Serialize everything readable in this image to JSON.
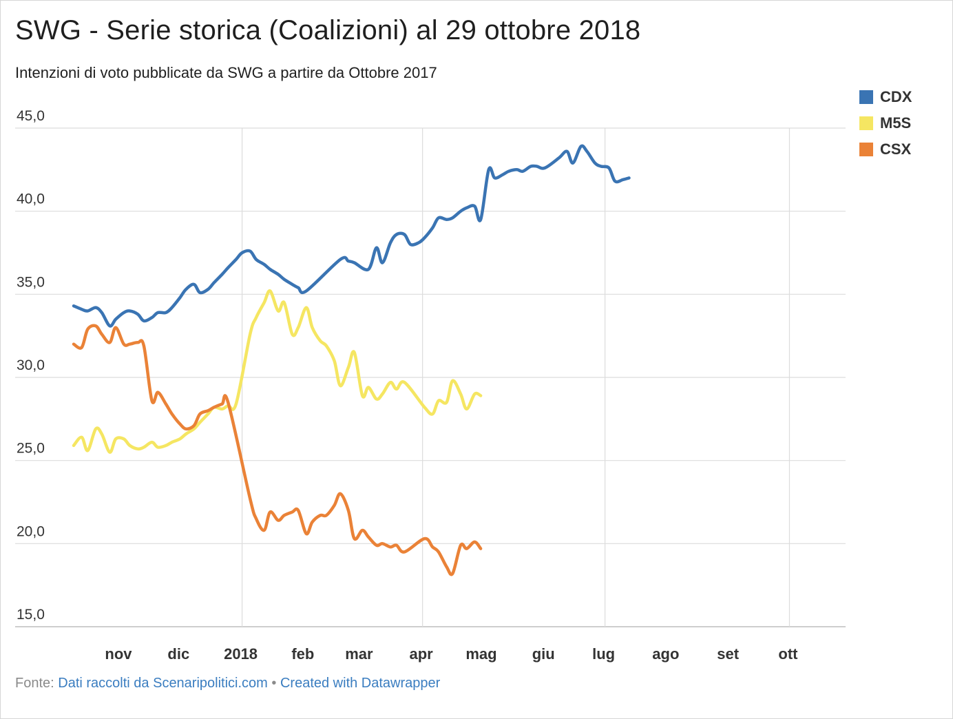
{
  "title": "SWG - Serie storica (Coalizioni) al 29 ottobre 2018",
  "subtitle": "Intenzioni di voto pubblicate da SWG a partire da Ottobre 2017",
  "footer": {
    "source_label": "Fonte:",
    "source_link": "Dati raccolti da Scenaripolitici.com",
    "separator": "•",
    "credit": "Created with Datawrapper"
  },
  "chart_data": {
    "type": "line",
    "x_unit": "date",
    "x_range": [
      "2017-10-09",
      "2018-10-29"
    ],
    "ylim": [
      15,
      45
    ],
    "yticks": [
      "15,0",
      "20,0",
      "25,0",
      "30,0",
      "35,0",
      "40,0",
      "45,0"
    ],
    "ytick_values": [
      15,
      20,
      25,
      30,
      35,
      40,
      45
    ],
    "xticks": [
      {
        "label": "nov",
        "date": "2017-11-01",
        "gridline": false
      },
      {
        "label": "dic",
        "date": "2017-12-01",
        "gridline": false
      },
      {
        "label": "2018",
        "date": "2018-01-01",
        "gridline": true
      },
      {
        "label": "feb",
        "date": "2018-02-01",
        "gridline": false
      },
      {
        "label": "mar",
        "date": "2018-03-01",
        "gridline": false
      },
      {
        "label": "apr",
        "date": "2018-04-01",
        "gridline": true
      },
      {
        "label": "mag",
        "date": "2018-05-01",
        "gridline": false
      },
      {
        "label": "giu",
        "date": "2018-06-01",
        "gridline": false
      },
      {
        "label": "lug",
        "date": "2018-07-01",
        "gridline": true
      },
      {
        "label": "ago",
        "date": "2018-08-01",
        "gridline": false
      },
      {
        "label": "set",
        "date": "2018-09-01",
        "gridline": false
      },
      {
        "label": "ott",
        "date": "2018-10-01",
        "gridline": true
      }
    ],
    "legend_position": "top-right",
    "series": [
      {
        "name": "CDX",
        "color": "#3a74b3",
        "gaps": [
          [
            "2018-02-19",
            "2018-03-05"
          ],
          [
            "2018-07-30",
            "2018-09-03"
          ]
        ],
        "points": [
          [
            "2017-10-09",
            34.3
          ],
          [
            "2017-10-13",
            34.1
          ],
          [
            "2017-10-16",
            34.0
          ],
          [
            "2017-10-20",
            34.2
          ],
          [
            "2017-10-23",
            33.9
          ],
          [
            "2017-10-27",
            33.1
          ],
          [
            "2017-10-30",
            33.5
          ],
          [
            "2017-11-03",
            33.9
          ],
          [
            "2017-11-06",
            34.0
          ],
          [
            "2017-11-10",
            33.8
          ],
          [
            "2017-11-13",
            33.4
          ],
          [
            "2017-11-17",
            33.6
          ],
          [
            "2017-11-20",
            33.9
          ],
          [
            "2017-11-24",
            33.9
          ],
          [
            "2017-11-27",
            34.2
          ],
          [
            "2017-12-01",
            34.8
          ],
          [
            "2017-12-04",
            35.3
          ],
          [
            "2017-12-08",
            35.6
          ],
          [
            "2017-12-11",
            35.1
          ],
          [
            "2017-12-15",
            35.3
          ],
          [
            "2017-12-18",
            35.7
          ],
          [
            "2017-12-22",
            36.2
          ],
          [
            "2017-12-25",
            36.6
          ],
          [
            "2017-12-29",
            37.1
          ],
          [
            "2018-01-01",
            37.5
          ],
          [
            "2018-01-05",
            37.6
          ],
          [
            "2018-01-08",
            37.1
          ],
          [
            "2018-01-12",
            36.8
          ],
          [
            "2018-01-15",
            36.5
          ],
          [
            "2018-01-19",
            36.2
          ],
          [
            "2018-01-22",
            35.9
          ],
          [
            "2018-01-26",
            35.6
          ],
          [
            "2018-01-29",
            35.4
          ],
          [
            "2018-02-02",
            35.2
          ],
          [
            "2018-02-19",
            37.1
          ],
          [
            "2018-02-23",
            37.0
          ],
          [
            "2018-02-26",
            36.9
          ],
          [
            "2018-03-05",
            36.5
          ],
          [
            "2018-03-09",
            37.8
          ],
          [
            "2018-03-12",
            36.9
          ],
          [
            "2018-03-16",
            38.1
          ],
          [
            "2018-03-19",
            38.6
          ],
          [
            "2018-03-23",
            38.6
          ],
          [
            "2018-03-26",
            38.0
          ],
          [
            "2018-03-30",
            38.1
          ],
          [
            "2018-04-02",
            38.4
          ],
          [
            "2018-04-06",
            39.0
          ],
          [
            "2018-04-09",
            39.6
          ],
          [
            "2018-04-13",
            39.5
          ],
          [
            "2018-04-16",
            39.6
          ],
          [
            "2018-04-20",
            40.0
          ],
          [
            "2018-04-23",
            40.2
          ],
          [
            "2018-04-27",
            40.3
          ],
          [
            "2018-04-30",
            39.5
          ],
          [
            "2018-05-04",
            42.5
          ],
          [
            "2018-05-07",
            42.0
          ],
          [
            "2018-05-11",
            42.2
          ],
          [
            "2018-05-14",
            42.4
          ],
          [
            "2018-05-18",
            42.5
          ],
          [
            "2018-05-21",
            42.4
          ],
          [
            "2018-05-25",
            42.7
          ],
          [
            "2018-05-28",
            42.7
          ],
          [
            "2018-06-01",
            42.6
          ],
          [
            "2018-06-08",
            43.2
          ],
          [
            "2018-06-12",
            43.6
          ],
          [
            "2018-06-15",
            42.9
          ],
          [
            "2018-06-19",
            43.9
          ],
          [
            "2018-06-22",
            43.6
          ],
          [
            "2018-06-26",
            42.9
          ],
          [
            "2018-06-29",
            42.7
          ],
          [
            "2018-07-03",
            42.6
          ],
          [
            "2018-07-06",
            41.8
          ],
          [
            "2018-07-10",
            41.9
          ],
          [
            "2018-07-13",
            42.0
          ]
        ]
      },
      {
        "name": "M5S",
        "color": "#f5e662",
        "gaps": [
          [
            "2018-02-19",
            "2018-03-05"
          ],
          [
            "2018-07-30",
            "2018-09-03"
          ]
        ],
        "points": [
          [
            "2017-10-09",
            25.9
          ],
          [
            "2017-10-13",
            26.4
          ],
          [
            "2017-10-16",
            25.6
          ],
          [
            "2017-10-20",
            26.9
          ],
          [
            "2017-10-23",
            26.6
          ],
          [
            "2017-10-27",
            25.5
          ],
          [
            "2017-10-30",
            26.3
          ],
          [
            "2017-11-03",
            26.3
          ],
          [
            "2017-11-06",
            25.9
          ],
          [
            "2017-11-10",
            25.7
          ],
          [
            "2017-11-13",
            25.8
          ],
          [
            "2017-11-17",
            26.1
          ],
          [
            "2017-11-20",
            25.8
          ],
          [
            "2017-11-24",
            25.9
          ],
          [
            "2017-11-27",
            26.1
          ],
          [
            "2017-12-01",
            26.3
          ],
          [
            "2017-12-04",
            26.6
          ],
          [
            "2017-12-08",
            26.9
          ],
          [
            "2017-12-11",
            27.3
          ],
          [
            "2017-12-15",
            27.8
          ],
          [
            "2017-12-18",
            28.2
          ],
          [
            "2017-12-22",
            28.1
          ],
          [
            "2017-12-25",
            28.3
          ],
          [
            "2017-12-29",
            28.4
          ],
          [
            "2018-01-05",
            32.6
          ],
          [
            "2018-01-08",
            33.6
          ],
          [
            "2018-01-12",
            34.5
          ],
          [
            "2018-01-15",
            35.2
          ],
          [
            "2018-01-19",
            34.0
          ],
          [
            "2018-01-22",
            34.5
          ],
          [
            "2018-01-26",
            32.6
          ],
          [
            "2018-01-29",
            33.0
          ],
          [
            "2018-02-02",
            34.2
          ],
          [
            "2018-02-05",
            33.0
          ],
          [
            "2018-02-09",
            32.2
          ],
          [
            "2018-02-12",
            31.9
          ],
          [
            "2018-02-16",
            31.0
          ],
          [
            "2018-02-19",
            29.5
          ],
          [
            "2018-02-23",
            30.6
          ],
          [
            "2018-02-26",
            31.5
          ],
          [
            "2018-03-02",
            28.9
          ],
          [
            "2018-03-05",
            29.4
          ],
          [
            "2018-03-09",
            28.7
          ],
          [
            "2018-03-12",
            29.0
          ],
          [
            "2018-03-16",
            29.7
          ],
          [
            "2018-03-19",
            29.3
          ],
          [
            "2018-03-23",
            29.7
          ],
          [
            "2018-04-02",
            28.2
          ],
          [
            "2018-04-06",
            27.8
          ],
          [
            "2018-04-09",
            28.6
          ],
          [
            "2018-04-13",
            28.5
          ],
          [
            "2018-04-16",
            29.8
          ],
          [
            "2018-04-20",
            29.0
          ],
          [
            "2018-04-23",
            28.1
          ],
          [
            "2018-04-27",
            29.0
          ],
          [
            "2018-04-30",
            28.9
          ]
        ]
      },
      {
        "name": "CSX",
        "color": "#ea8237",
        "gaps": [
          [
            "2018-02-19",
            "2018-03-05"
          ],
          [
            "2018-07-30",
            "2018-09-03"
          ]
        ],
        "points": [
          [
            "2017-10-09",
            32.0
          ],
          [
            "2017-10-13",
            31.8
          ],
          [
            "2017-10-16",
            32.9
          ],
          [
            "2017-10-20",
            33.1
          ],
          [
            "2017-10-23",
            32.6
          ],
          [
            "2017-10-27",
            32.1
          ],
          [
            "2017-10-30",
            33.0
          ],
          [
            "2017-11-03",
            32.0
          ],
          [
            "2017-11-06",
            32.0
          ],
          [
            "2017-11-10",
            32.1
          ],
          [
            "2017-11-13",
            31.9
          ],
          [
            "2017-11-17",
            28.6
          ],
          [
            "2017-11-20",
            29.1
          ],
          [
            "2017-11-24",
            28.4
          ],
          [
            "2017-11-27",
            27.8
          ],
          [
            "2017-12-01",
            27.2
          ],
          [
            "2017-12-04",
            26.9
          ],
          [
            "2017-12-08",
            27.1
          ],
          [
            "2017-12-11",
            27.8
          ],
          [
            "2017-12-15",
            28.0
          ],
          [
            "2017-12-18",
            28.2
          ],
          [
            "2017-12-22",
            28.4
          ],
          [
            "2017-12-25",
            28.5
          ],
          [
            "2018-01-05",
            22.7
          ],
          [
            "2018-01-08",
            21.5
          ],
          [
            "2018-01-12",
            20.8
          ],
          [
            "2018-01-15",
            21.9
          ],
          [
            "2018-01-19",
            21.4
          ],
          [
            "2018-01-22",
            21.7
          ],
          [
            "2018-01-26",
            21.9
          ],
          [
            "2018-01-29",
            22.0
          ],
          [
            "2018-02-02",
            20.6
          ],
          [
            "2018-02-05",
            21.3
          ],
          [
            "2018-02-09",
            21.7
          ],
          [
            "2018-02-12",
            21.7
          ],
          [
            "2018-02-16",
            22.3
          ],
          [
            "2018-02-19",
            23.0
          ],
          [
            "2018-02-23",
            22.0
          ],
          [
            "2018-02-26",
            20.3
          ],
          [
            "2018-03-02",
            20.8
          ],
          [
            "2018-03-05",
            20.4
          ],
          [
            "2018-03-09",
            19.9
          ],
          [
            "2018-03-12",
            20.0
          ],
          [
            "2018-03-16",
            19.8
          ],
          [
            "2018-03-19",
            19.9
          ],
          [
            "2018-03-23",
            19.5
          ],
          [
            "2018-04-02",
            20.3
          ],
          [
            "2018-04-06",
            19.8
          ],
          [
            "2018-04-09",
            19.5
          ],
          [
            "2018-04-13",
            18.6
          ],
          [
            "2018-04-16",
            18.2
          ],
          [
            "2018-04-20",
            19.9
          ],
          [
            "2018-04-23",
            19.7
          ],
          [
            "2018-04-27",
            20.1
          ],
          [
            "2018-04-30",
            19.7
          ]
        ]
      }
    ]
  }
}
